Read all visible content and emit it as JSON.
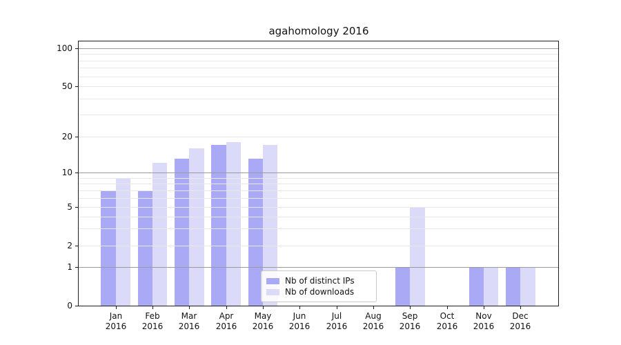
{
  "title": "agahomology 2016",
  "chart_data": {
    "type": "bar",
    "title": "agahomology 2016",
    "xlabel": "",
    "ylabel": "",
    "categories": [
      {
        "month": "Jan",
        "year": "2016"
      },
      {
        "month": "Feb",
        "year": "2016"
      },
      {
        "month": "Mar",
        "year": "2016"
      },
      {
        "month": "Apr",
        "year": "2016"
      },
      {
        "month": "May",
        "year": "2016"
      },
      {
        "month": "Jun",
        "year": "2016"
      },
      {
        "month": "Jul",
        "year": "2016"
      },
      {
        "month": "Aug",
        "year": "2016"
      },
      {
        "month": "Sep",
        "year": "2016"
      },
      {
        "month": "Oct",
        "year": "2016"
      },
      {
        "month": "Nov",
        "year": "2016"
      },
      {
        "month": "Dec",
        "year": "2016"
      }
    ],
    "series": [
      {
        "name": "Nb of distinct IPs",
        "color": "#a9a9f6",
        "values": [
          7,
          7,
          13,
          17,
          13,
          0,
          0,
          0,
          1,
          0,
          1,
          1
        ]
      },
      {
        "name": "Nb of downloads",
        "color": "#dbdbf9",
        "values": [
          9,
          12,
          16,
          18,
          17,
          0,
          0,
          0,
          5,
          0,
          1,
          1
        ]
      }
    ],
    "yscale": "symlog-like",
    "ylim": [
      0,
      115
    ],
    "yticks": [
      0,
      1,
      2,
      5,
      10,
      20,
      50,
      100
    ],
    "major_gridlines": [
      1,
      10,
      100
    ],
    "minor_gridlines": [
      2,
      3,
      4,
      5,
      6,
      7,
      8,
      9,
      20,
      30,
      40,
      50,
      60,
      70,
      80,
      90
    ],
    "grid": true,
    "legend_position": "inside lower-center",
    "bar_colors": {
      "distinct_ips": "#a9a9f6",
      "downloads": "#dbdbf9"
    }
  }
}
